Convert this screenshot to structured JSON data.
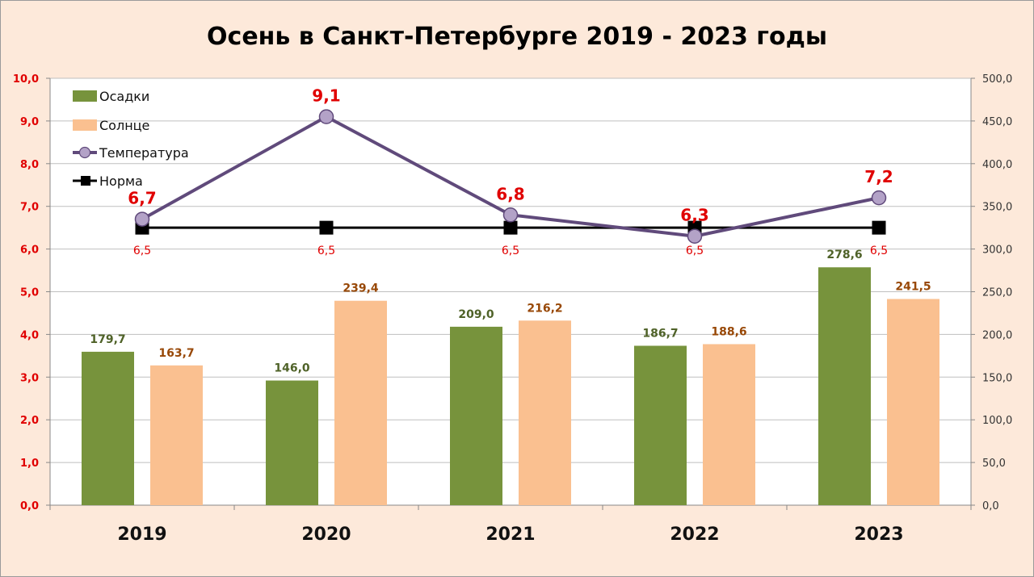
{
  "chart_data": {
    "type": "bar",
    "title": "Осень в Санкт-Петербурге 2019 - 2023 годы",
    "categories": [
      "2019",
      "2020",
      "2021",
      "2022",
      "2023"
    ],
    "y_left": {
      "ylim": [
        0,
        10
      ],
      "ticks": [
        "0,0",
        "1,0",
        "2,0",
        "3,0",
        "4,0",
        "5,0",
        "6,0",
        "7,0",
        "8,0",
        "9,0",
        "10,0"
      ]
    },
    "y_right": {
      "ylim": [
        0,
        500
      ],
      "ticks": [
        "0,0",
        "50,0",
        "100,0",
        "150,0",
        "200,0",
        "250,0",
        "300,0",
        "350,0",
        "400,0",
        "450,0",
        "500,0"
      ]
    },
    "grid": true,
    "legend_position": "top-left",
    "series": [
      {
        "name": "Осадки",
        "kind": "bar",
        "axis": "right",
        "color": "#77933c",
        "values": [
          179.7,
          146.0,
          209.0,
          186.7,
          278.6
        ],
        "labels": [
          "179,7",
          "146,0",
          "209,0",
          "186,7",
          "278,6"
        ]
      },
      {
        "name": "Солнце",
        "kind": "bar",
        "axis": "right",
        "color": "#fac090",
        "values": [
          163.7,
          239.4,
          216.2,
          188.6,
          241.5
        ],
        "labels": [
          "163,7",
          "239,4",
          "216,2",
          "188,6",
          "241,5"
        ]
      },
      {
        "name": "Температура",
        "kind": "line",
        "axis": "left",
        "color": "#604a7b",
        "marker_color": "#b3a2c7",
        "values": [
          6.7,
          9.1,
          6.8,
          6.3,
          7.2
        ],
        "labels": [
          "6,7",
          "9,1",
          "6,8",
          "6,3",
          "7,2"
        ]
      },
      {
        "name": "Норма",
        "kind": "line",
        "axis": "left",
        "color": "#000000",
        "values": [
          6.5,
          6.5,
          6.5,
          6.5,
          6.5
        ],
        "labels": [
          "6,5",
          "6,5",
          "6,5",
          "6,5",
          "6,5"
        ]
      }
    ]
  }
}
